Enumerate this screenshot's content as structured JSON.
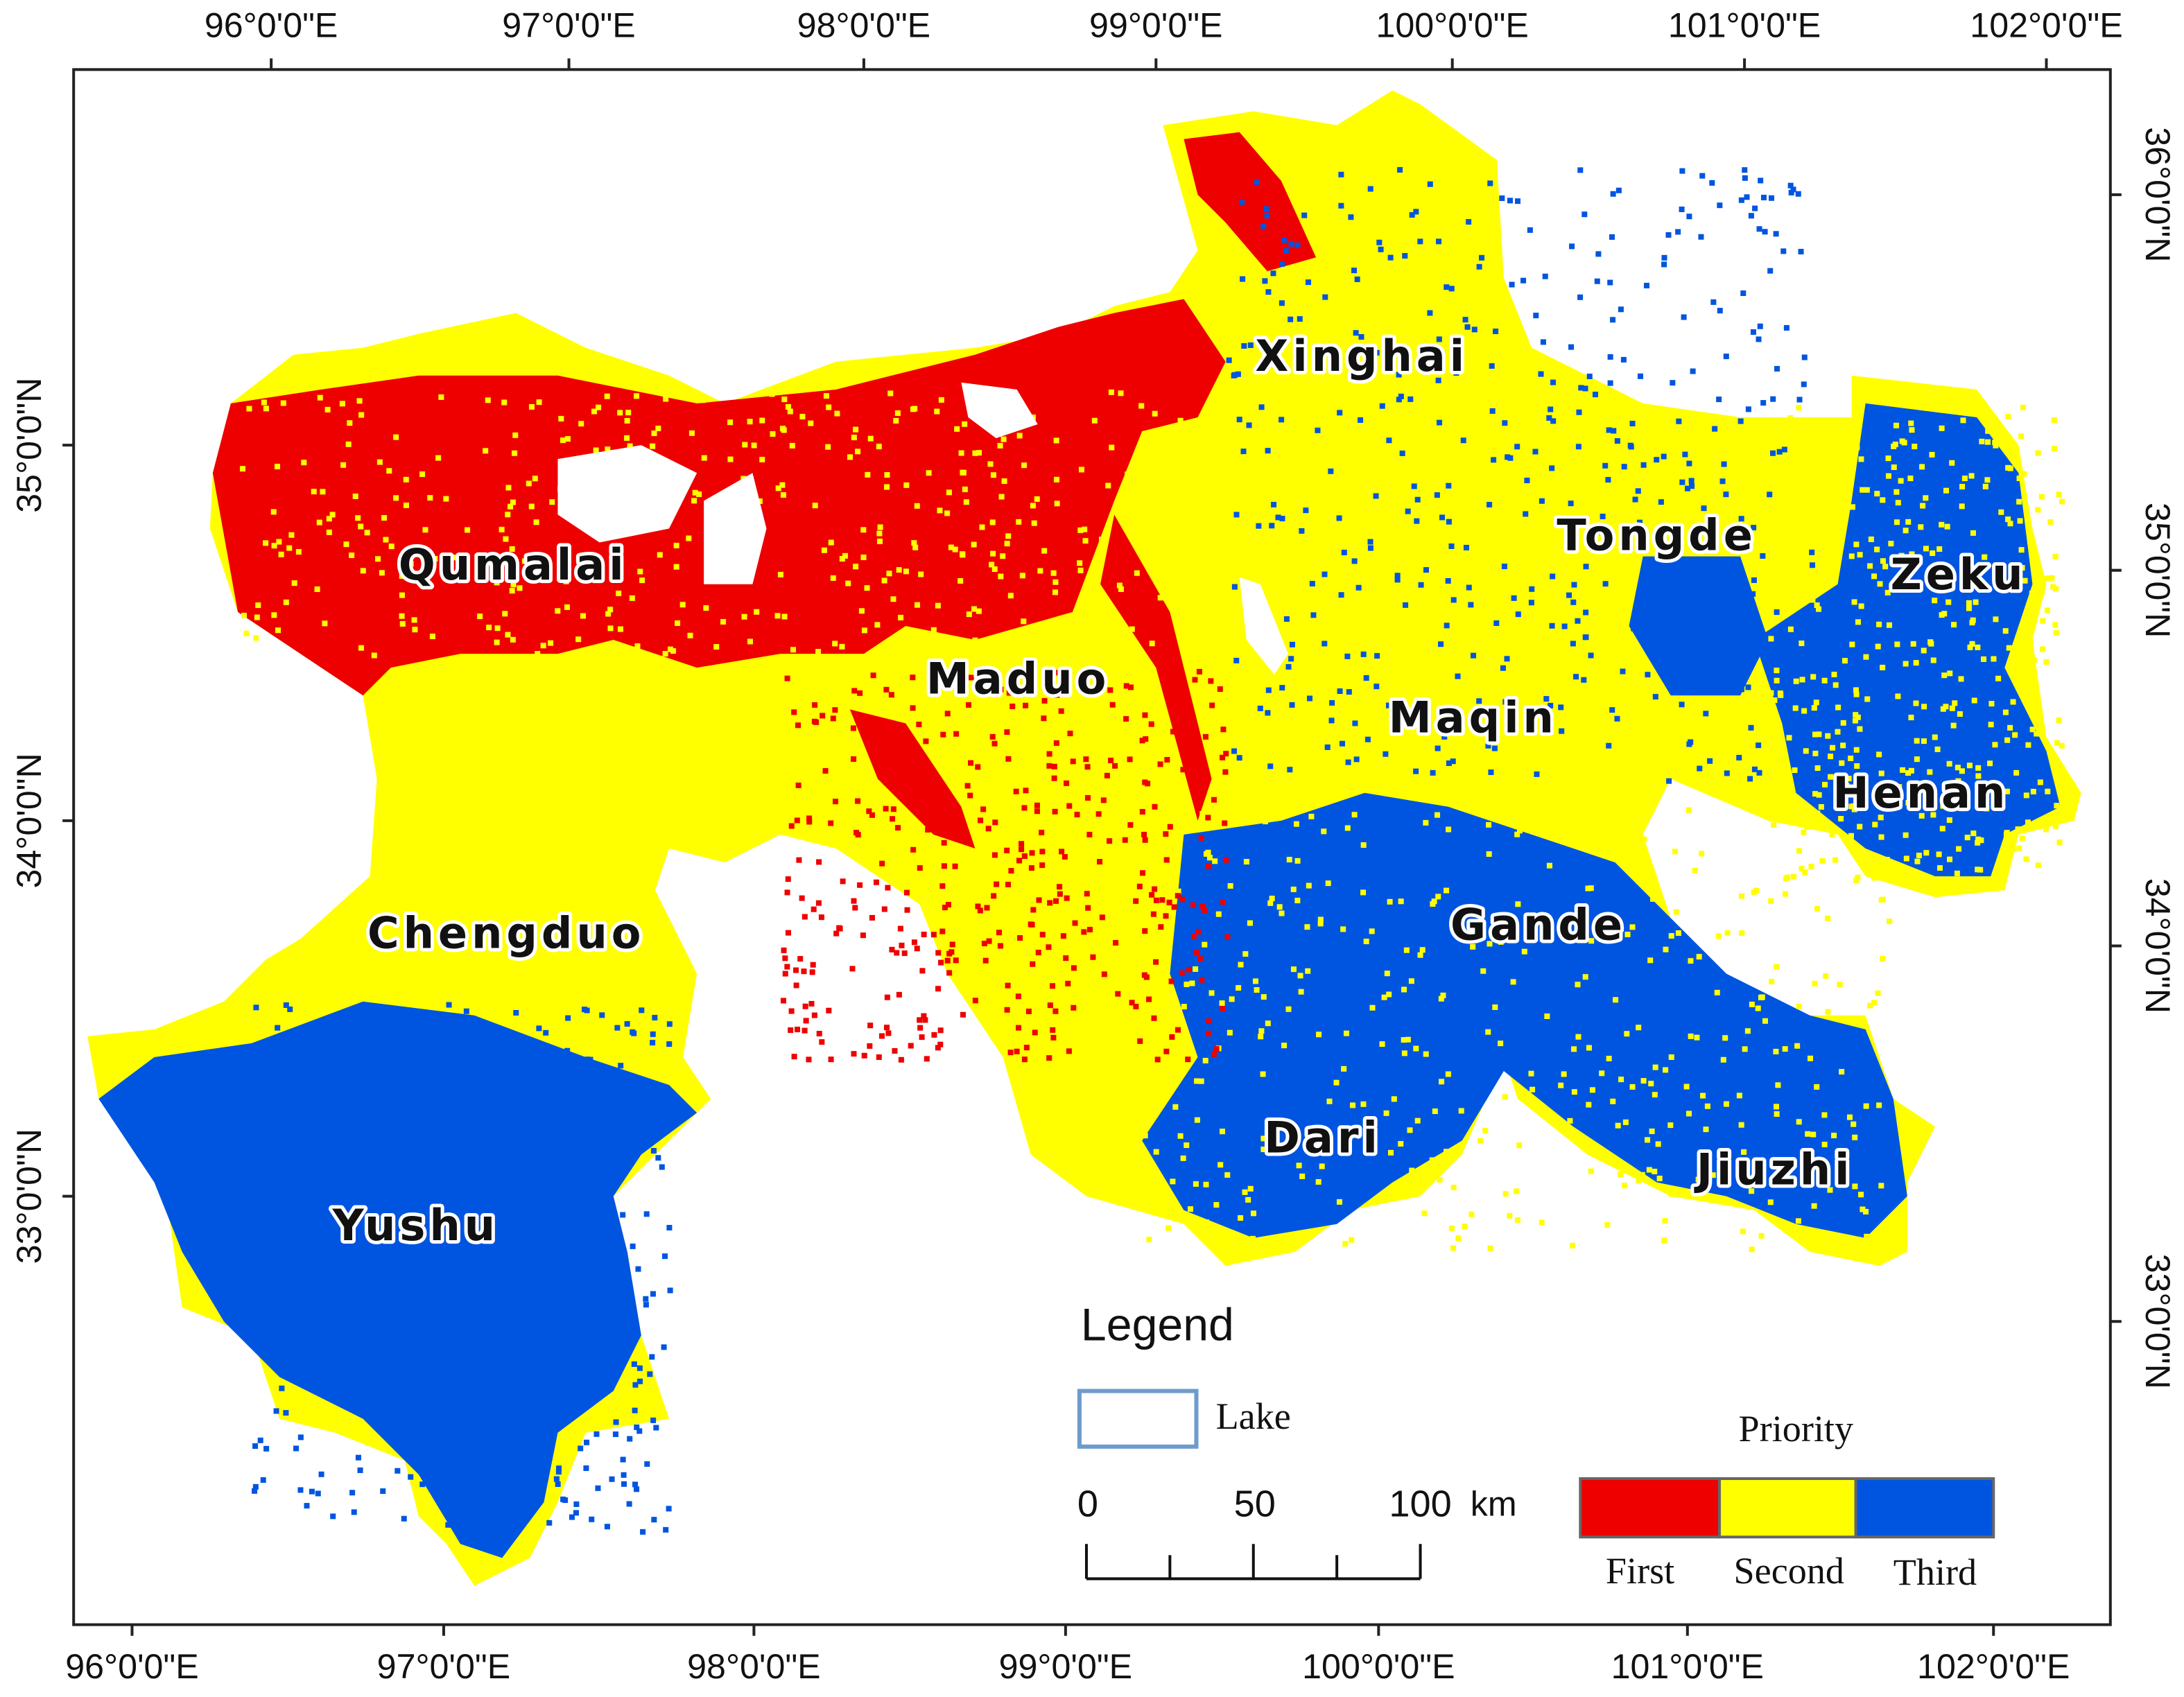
{
  "top_axis": [
    "96°0'0\"E",
    "97°0'0\"E",
    "98°0'0\"E",
    "99°0'0\"E",
    "100°0'0\"E",
    "101°0'0\"E",
    "102°0'0\"E"
  ],
  "bottom_axis": [
    "96°0'0\"E",
    "97°0'0\"E",
    "98°0'0\"E",
    "99°0'0\"E",
    "100°0'0\"E",
    "101°0'0\"E",
    "102°0'0\"E"
  ],
  "left_axis": [
    "35°0'0\"N",
    "34°0'0\"N",
    "33°0'0\"N"
  ],
  "right_axis": [
    "36°0'0\"N",
    "35°0'0\"N",
    "34°0'0\"N",
    "33°0'0\"N"
  ],
  "places": [
    "Xinghai",
    "Tongde",
    "Zeku",
    "Qumalai",
    "Maduo",
    "Maqin",
    "Henan",
    "Chengduo",
    "Gande",
    "Dari",
    "Jiuzhi",
    "Yushu"
  ],
  "legend": {
    "title": "Legend",
    "lake": "Lake",
    "priority_title": "Priority",
    "classes": [
      "First",
      "Second",
      "Third"
    ]
  },
  "scale_bar": {
    "labels": [
      "0",
      "50",
      "100"
    ],
    "unit": "km"
  }
}
